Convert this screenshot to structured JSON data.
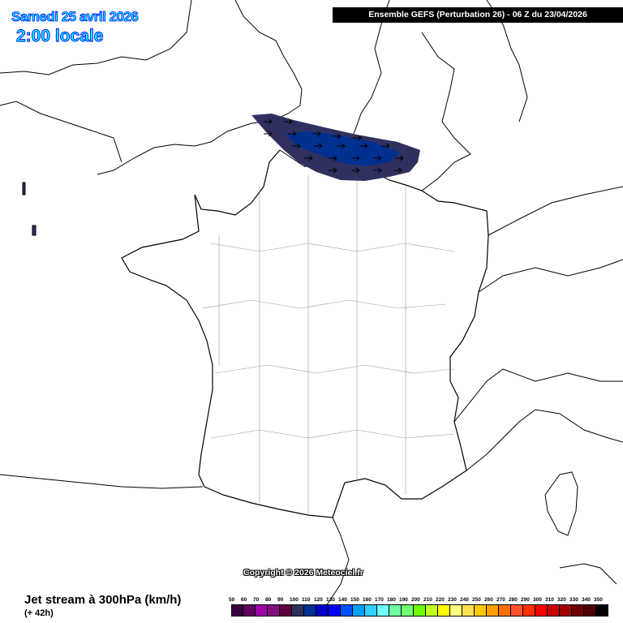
{
  "header": {
    "date": "Samedi 25 avril 2026",
    "time": "2:00 locale",
    "model": "Ensemble GEFS  (Perturbation 26)  -  06 Z du 23/04/2026"
  },
  "copyright": "Copyright © 2026 Meteociel.fr",
  "legend": {
    "title": "Jet stream à 300hPa (km/h)",
    "subtitle": "(+ 42h)",
    "levels": [
      {
        "value": "50",
        "color": "#3a0040"
      },
      {
        "value": "60",
        "color": "#600060"
      },
      {
        "value": "70",
        "color": "#a000a8"
      },
      {
        "value": "80",
        "color": "#801080"
      },
      {
        "value": "90",
        "color": "#600040"
      },
      {
        "value": "100",
        "color": "#303060"
      },
      {
        "value": "110",
        "color": "#003090"
      },
      {
        "value": "120",
        "color": "#0000c8"
      },
      {
        "value": "130",
        "color": "#0000ff"
      },
      {
        "value": "140",
        "color": "#0050ff"
      },
      {
        "value": "150",
        "color": "#00a0ff"
      },
      {
        "value": "160",
        "color": "#30d0ff"
      },
      {
        "value": "170",
        "color": "#70ffff"
      },
      {
        "value": "180",
        "color": "#70ffa0"
      },
      {
        "value": "190",
        "color": "#70ff70"
      },
      {
        "value": "200",
        "color": "#70ff00"
      },
      {
        "value": "210",
        "color": "#c0ff20"
      },
      {
        "value": "220",
        "color": "#ffff00"
      },
      {
        "value": "230",
        "color": "#ffff80"
      },
      {
        "value": "240",
        "color": "#ffe050"
      },
      {
        "value": "250",
        "color": "#ffc800"
      },
      {
        "value": "260",
        "color": "#ffa000"
      },
      {
        "value": "270",
        "color": "#ff7000"
      },
      {
        "value": "280",
        "color": "#ff5030"
      },
      {
        "value": "290",
        "color": "#ff3000"
      },
      {
        "value": "300",
        "color": "#ff0000"
      },
      {
        "value": "310",
        "color": "#c80000"
      },
      {
        "value": "320",
        "color": "#a00000"
      },
      {
        "value": "330",
        "color": "#700000"
      },
      {
        "value": "340",
        "color": "#500000"
      },
      {
        "value": "350",
        "color": "#000000"
      }
    ]
  },
  "jet": {
    "outer_level": "100",
    "inner_level": "110",
    "outer_color": "#303060",
    "inner_color": "#003090",
    "wind_direction": "east"
  }
}
